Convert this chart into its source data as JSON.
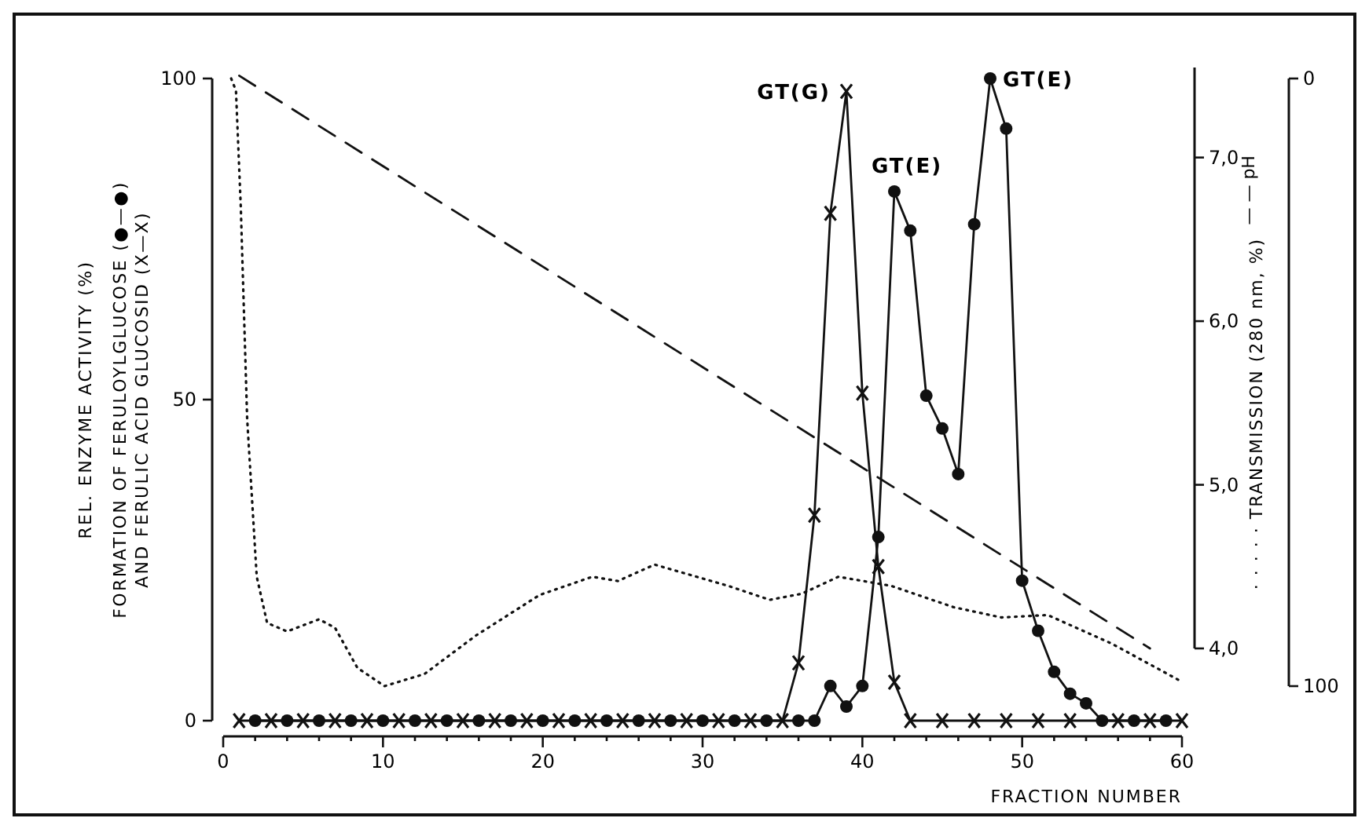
{
  "chart_data": {
    "type": "line",
    "xlabel": "FRACTION NUMBER",
    "ylabel": "REL. ENZYME ACTIVITY (%)\nFORMATION OF FERULOYLGLUCOSE (●—●)\nAND FERULIC ACID GLUCOSID (X—X)",
    "y2label": "— — pH",
    "y3label": "· · · · · TRANSMISSION (280 nm, %)",
    "xlim": [
      0,
      60
    ],
    "xticks": [
      0,
      {
        "value": 2,
        "label": null
      },
      {
        "value": 4,
        "label": null
      },
      {
        "value": 6,
        "label": null
      },
      {
        "value": 8,
        "label": null
      },
      10,
      {
        "value": 12,
        "label": null
      },
      {
        "value": 14,
        "label": null
      },
      {
        "value": 16,
        "label": null
      },
      {
        "value": 18,
        "label": null
      },
      20,
      {
        "value": 22,
        "label": null
      },
      {
        "value": 24,
        "label": null
      },
      {
        "value": 26,
        "label": null
      },
      {
        "value": 28,
        "label": null
      },
      30,
      {
        "value": 32,
        "label": null
      },
      {
        "value": 34,
        "label": null
      },
      {
        "value": 36,
        "label": null
      },
      {
        "value": 38,
        "label": null
      },
      40,
      {
        "value": 42,
        "label": null
      },
      {
        "value": 44,
        "label": null
      },
      {
        "value": 46,
        "label": null
      },
      {
        "value": 48,
        "label": null
      },
      50,
      {
        "value": 52,
        "label": null
      },
      {
        "value": 54,
        "label": null
      },
      {
        "value": 56,
        "label": null
      },
      {
        "value": 58,
        "label": null
      },
      60
    ],
    "ylim": [
      0,
      100
    ],
    "yticks": [
      0,
      50,
      100
    ],
    "y2lim": [
      4.0,
      7.55
    ],
    "y2ticks": [
      {
        "value": 4,
        "label": "4,0"
      },
      {
        "value": 5,
        "label": "5,0"
      },
      {
        "value": 6,
        "label": "6,0"
      },
      {
        "value": 7,
        "label": "7,0"
      }
    ],
    "y3lim": [
      100,
      0
    ],
    "y3ticks": [
      100,
      0
    ],
    "grid": false,
    "series": [
      {
        "marker": "circle",
        "line_style": "solid",
        "color": "#111111",
        "x": [
          2,
          4,
          6,
          8,
          10,
          12,
          14,
          16,
          18,
          20,
          22,
          24,
          26,
          28,
          30,
          32,
          34,
          36,
          37,
          38,
          39,
          40,
          41,
          42,
          43,
          44,
          45,
          46,
          47,
          48,
          49,
          50,
          51,
          52,
          53,
          54,
          55,
          57,
          59
        ],
        "values": [
          0,
          0,
          0,
          0,
          0,
          0,
          0,
          0,
          0,
          0,
          0,
          0,
          0,
          0,
          0,
          0,
          0,
          0,
          0,
          5.4,
          2.2,
          5.4,
          28.6,
          82.4,
          76.3,
          50.6,
          45.5,
          38.4,
          77.3,
          100,
          92.2,
          21.8,
          14,
          7.6,
          4.2,
          2.7,
          0,
          0,
          0
        ]
      },
      {
        "marker": "cross",
        "line_style": "solid",
        "color": "#111111",
        "x": [
          1,
          3,
          5,
          7,
          9,
          11,
          13,
          15,
          17,
          19,
          21,
          23,
          25,
          27,
          29,
          31,
          33,
          35,
          36,
          37,
          38,
          39,
          40,
          41,
          42,
          43,
          45,
          47,
          49,
          51,
          53,
          56,
          58,
          60
        ],
        "values": [
          0,
          0,
          0,
          0,
          0,
          0,
          0,
          0,
          0,
          0,
          0,
          0,
          0,
          0,
          0,
          0,
          0,
          0,
          9,
          32,
          79,
          98,
          51,
          24,
          6,
          0,
          0,
          0,
          0,
          0,
          0,
          0,
          0,
          0
        ]
      },
      {
        "axis": "y2",
        "marker": "none",
        "line_style": "dashed",
        "color": "#111111",
        "x": [
          1,
          58
        ],
        "values": [
          7.5,
          4.0
        ]
      },
      {
        "axis": "y3",
        "marker": "none",
        "line_style": "dotted",
        "color": "#111111",
        "x": [
          0.5,
          0.8,
          1.1,
          1.5,
          2.1,
          2.75,
          4,
          6,
          7,
          8.4,
          10.1,
          12.6,
          15.8,
          19.8,
          23.1,
          24.7,
          27,
          31.6,
          34.2,
          36.2,
          38.5,
          41.8,
          45.7,
          48.7,
          51.6,
          55.6,
          59.8
        ],
        "values": [
          0,
          2,
          21,
          56,
          82,
          89.6,
          91,
          89,
          90.4,
          97,
          100,
          98,
          91.7,
          85,
          82,
          82.7,
          80,
          83.5,
          85.8,
          84.8,
          82,
          83.5,
          87,
          88.7,
          88.3,
          93,
          99
        ]
      }
    ],
    "annotations": [
      {
        "text": "GT(G)",
        "x": 39,
        "y": 98
      },
      {
        "text": "GT(E)",
        "x": 42,
        "y": 82.4
      },
      {
        "text": "GT(E)",
        "x": 48,
        "y": 100
      }
    ]
  }
}
